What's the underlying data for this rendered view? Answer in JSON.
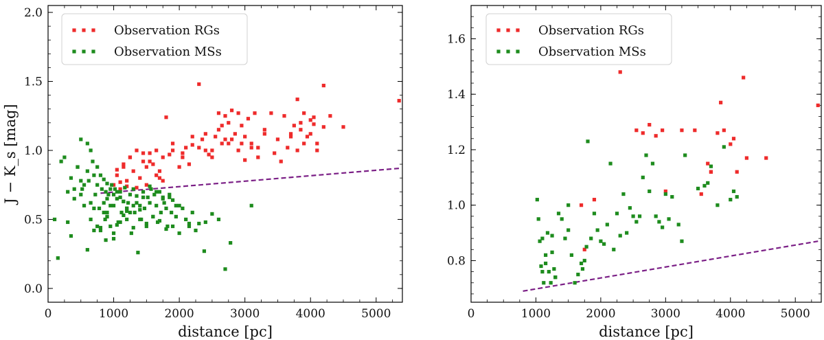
{
  "chart_data": [
    {
      "type": "scatter",
      "panel": "left",
      "xlabel": "distance [pc]",
      "ylabel": "J − K_s [mag]",
      "xlim": [
        0,
        5400
      ],
      "ylim": [
        -0.1,
        2.05
      ],
      "xticks": [
        0,
        1000,
        2000,
        3000,
        4000,
        5000
      ],
      "yticks": [
        0.0,
        0.5,
        1.0,
        1.5,
        2.0
      ],
      "ytick_labels": [
        "0.0",
        "0.5",
        "1.0",
        "1.5",
        "2.0"
      ],
      "legend_position": "top-left",
      "boundary_line": {
        "name": "threshold",
        "color": "#7b1f86",
        "style": "dashed",
        "x": [
          800,
          5350
        ],
        "y": [
          0.69,
          0.87
        ]
      },
      "series": [
        {
          "name": "Observation RGs",
          "color": "#ee2b2b",
          "x": [
            1000,
            1050,
            1100,
            1150,
            1200,
            1250,
            1300,
            1350,
            1400,
            1450,
            1500,
            1550,
            1600,
            1650,
            1700,
            1750,
            1800,
            1850,
            1900,
            2000,
            2050,
            2100,
            2200,
            2300,
            2350,
            2400,
            2450,
            2500,
            2550,
            2600,
            2650,
            2700,
            2750,
            2800,
            2850,
            2900,
            2950,
            3000,
            3050,
            3100,
            3150,
            3200,
            3300,
            3400,
            3500,
            3600,
            3700,
            3750,
            3800,
            3850,
            3900,
            4000,
            4050,
            4100,
            4200,
            4300,
            4500,
            5350,
            1750,
            1100,
            1200,
            1350,
            1500,
            2900,
            3850,
            2300,
            4200,
            3950,
            4050,
            2650,
            3450,
            1650,
            1900,
            2200,
            2500,
            2600,
            2750,
            2800,
            3000,
            3100,
            3200,
            3300,
            3550,
            3650,
            3700,
            3800,
            3900,
            4000,
            4100,
            1050,
            1150,
            1250,
            1450,
            1550,
            1700,
            2050,
            2150,
            2400,
            2700,
            2950
          ],
          "y": [
            0.75,
            0.82,
            0.72,
            0.9,
            0.78,
            0.95,
            0.85,
            1.0,
            0.8,
            0.92,
            0.88,
            0.98,
            0.9,
            0.82,
            0.85,
            0.95,
            1.24,
            0.97,
            1.0,
            0.88,
            0.98,
            1.02,
            1.04,
            1.02,
            1.08,
            1.12,
            0.97,
            1.0,
            1.1,
            1.27,
            1.18,
            1.25,
            1.05,
            1.29,
            1.12,
            1.27,
            1.05,
            1.1,
            1.23,
            1.02,
            1.27,
            0.95,
            1.15,
            1.27,
            1.08,
            1.25,
            1.12,
            1.18,
            1.37,
            1.15,
            1.27,
            1.22,
            1.19,
            1.05,
            1.47,
            1.25,
            1.17,
            1.36,
            0.78,
            0.77,
            0.74,
            0.73,
            0.75,
            1.0,
            1.2,
            1.48,
            1.17,
            1.1,
            1.24,
            1.05,
            0.98,
            1.0,
            1.05,
            1.1,
            0.95,
            1.15,
            1.2,
            1.08,
            0.93,
            1.05,
            1.02,
            1.12,
            0.92,
            1.02,
            1.1,
            1.0,
            1.05,
            1.12,
            1.0,
            0.86,
            0.88,
            0.95,
            0.98,
            0.92,
            0.8,
            0.95,
            0.9,
            1.0,
            1.08,
            1.18
          ]
        },
        {
          "name": "Observation MSs",
          "color": "#1e8c1e",
          "x": [
            100,
            150,
            250,
            300,
            350,
            400,
            450,
            500,
            520,
            550,
            600,
            620,
            650,
            680,
            700,
            720,
            750,
            780,
            800,
            820,
            850,
            870,
            880,
            900,
            920,
            950,
            970,
            1000,
            1020,
            1050,
            1070,
            1100,
            1120,
            1150,
            1170,
            1200,
            1220,
            1250,
            1270,
            1300,
            1320,
            1350,
            1370,
            1400,
            1420,
            1450,
            1470,
            1500,
            1520,
            1550,
            1570,
            1600,
            1620,
            1650,
            1670,
            1700,
            1720,
            1750,
            1770,
            1800,
            1820,
            1850,
            1880,
            1900,
            1950,
            2000,
            2050,
            2100,
            2150,
            2200,
            2300,
            2380,
            2500,
            2600,
            2780,
            3100,
            800,
            850,
            900,
            950,
            1000,
            1050,
            1100,
            1150,
            1200,
            1250,
            1300,
            1350,
            1400,
            600,
            650,
            700,
            750,
            550,
            500,
            1450,
            1550,
            1650,
            1750,
            1850,
            1950,
            650,
            700,
            750,
            800,
            850,
            900,
            950,
            1000,
            1050,
            1100,
            1150,
            1200,
            1300,
            1400,
            1500,
            1600,
            1700,
            1800,
            1900,
            2000,
            2150,
            2250,
            2400,
            2700,
            880,
            900,
            300,
            400,
            200,
            1000,
            1200,
            900,
            600,
            450,
            350,
            500
          ],
          "y": [
            0.5,
            0.22,
            0.95,
            0.7,
            0.8,
            0.65,
            0.88,
            1.08,
            0.72,
            0.6,
            0.85,
            0.78,
            0.5,
            0.92,
            0.42,
            0.68,
            0.75,
            0.58,
            0.44,
            0.72,
            0.62,
            0.5,
            0.7,
            0.55,
            0.68,
            0.45,
            0.75,
            0.6,
            0.72,
            0.65,
            0.48,
            0.7,
            0.55,
            0.63,
            0.73,
            0.5,
            0.62,
            0.68,
            0.4,
            0.72,
            0.55,
            0.67,
            0.26,
            0.6,
            0.5,
            0.7,
            0.58,
            0.45,
            0.66,
            0.62,
            0.72,
            0.52,
            0.68,
            0.6,
            0.48,
            0.7,
            0.55,
            0.65,
            0.62,
            0.58,
            0.45,
            0.66,
            0.55,
            0.64,
            0.52,
            0.6,
            0.58,
            0.5,
            0.47,
            0.55,
            0.47,
            0.27,
            0.54,
            0.5,
            0.33,
            0.6,
            0.82,
            0.79,
            0.76,
            0.72,
            0.68,
            0.7,
            0.66,
            0.63,
            0.58,
            0.55,
            0.6,
            0.62,
            0.57,
            1.05,
            1.0,
            0.82,
            0.88,
            0.75,
            0.68,
            0.66,
            0.74,
            0.7,
            0.66,
            0.68,
            0.6,
            0.62,
            0.58,
            0.45,
            0.42,
            0.55,
            0.52,
            0.6,
            0.4,
            0.46,
            0.48,
            0.53,
            0.56,
            0.44,
            0.5,
            0.47,
            0.52,
            0.49,
            0.43,
            0.45,
            0.4,
            0.45,
            0.42,
            0.48,
            0.14,
            0.35,
            0.52,
            0.48,
            0.72,
            0.92,
            0.36,
            0.58,
            0.65,
            0.28,
            0.88,
            0.38,
            0.78
          ]
        }
      ]
    },
    {
      "type": "scatter",
      "panel": "right",
      "xlabel": "distance [pc]",
      "ylabel": "",
      "xlim": [
        0,
        5400
      ],
      "ylim": [
        0.65,
        1.72
      ],
      "xticks": [
        0,
        1000,
        2000,
        3000,
        4000,
        5000
      ],
      "yticks": [
        0.8,
        1.0,
        1.2,
        1.4,
        1.6
      ],
      "ytick_labels": [
        "0.8",
        "1.0",
        "1.2",
        "1.4",
        "1.6"
      ],
      "legend_position": "top-right",
      "boundary_line": {
        "name": "threshold",
        "color": "#7b1f86",
        "style": "dashed",
        "x": [
          800,
          5350
        ],
        "y": [
          0.69,
          0.87
        ]
      },
      "series": [
        {
          "name": "Observation RGs",
          "color": "#ee2b2b",
          "x": [
            1700,
            1750,
            1900,
            2300,
            2550,
            2650,
            2750,
            2850,
            2950,
            3000,
            3250,
            3450,
            3700,
            3800,
            3850,
            3900,
            4000,
            4050,
            4100,
            4200,
            4250,
            4550,
            5350,
            3550,
            3650,
            3700
          ],
          "y": [
            1.0,
            0.84,
            1.02,
            1.48,
            1.27,
            1.26,
            1.29,
            1.25,
            1.27,
            1.05,
            1.27,
            1.27,
            1.12,
            1.26,
            1.37,
            1.27,
            1.22,
            1.24,
            1.12,
            1.46,
            1.17,
            1.17,
            1.36,
            1.04,
            1.15,
            1.12
          ],
          "hidden_points_note": ""
        },
        {
          "name": "Observation MSs",
          "color": "#1e8c1e",
          "x": [
            1020,
            1040,
            1060,
            1080,
            1100,
            1120,
            1150,
            1180,
            1200,
            1230,
            1250,
            1280,
            1300,
            1350,
            1400,
            1450,
            1500,
            1550,
            1600,
            1650,
            1700,
            1720,
            1750,
            1780,
            1800,
            1850,
            1900,
            1950,
            2000,
            2050,
            2100,
            2150,
            2200,
            2250,
            2300,
            2350,
            2400,
            2450,
            2500,
            2550,
            2600,
            2650,
            2700,
            2750,
            2800,
            2850,
            2900,
            2950,
            3000,
            3050,
            3100,
            3200,
            3250,
            3300,
            3500,
            3600,
            3650,
            3700,
            3800,
            3900,
            4000,
            4050,
            4100,
            1500,
            1250,
            1150,
            1100,
            1300
          ],
          "y": [
            1.02,
            0.95,
            0.87,
            0.78,
            0.76,
            0.72,
            0.79,
            0.9,
            0.76,
            0.72,
            0.83,
            0.77,
            0.74,
            0.97,
            0.95,
            0.88,
            1.0,
            0.82,
            0.72,
            0.75,
            0.79,
            0.77,
            0.8,
            0.85,
            1.23,
            0.88,
            0.97,
            0.91,
            0.87,
            0.86,
            0.93,
            1.15,
            0.84,
            0.97,
            0.89,
            1.04,
            0.9,
            0.99,
            0.96,
            0.94,
            0.96,
            1.1,
            1.18,
            1.05,
            1.15,
            0.96,
            0.94,
            0.92,
            1.04,
            0.95,
            1.03,
            0.93,
            0.87,
            1.18,
            1.06,
            1.07,
            1.08,
            1.14,
            1.0,
            1.21,
            1.02,
            1.05,
            1.03,
            0.91,
            0.89,
            0.82,
            0.88,
            0.74
          ]
        }
      ]
    }
  ]
}
